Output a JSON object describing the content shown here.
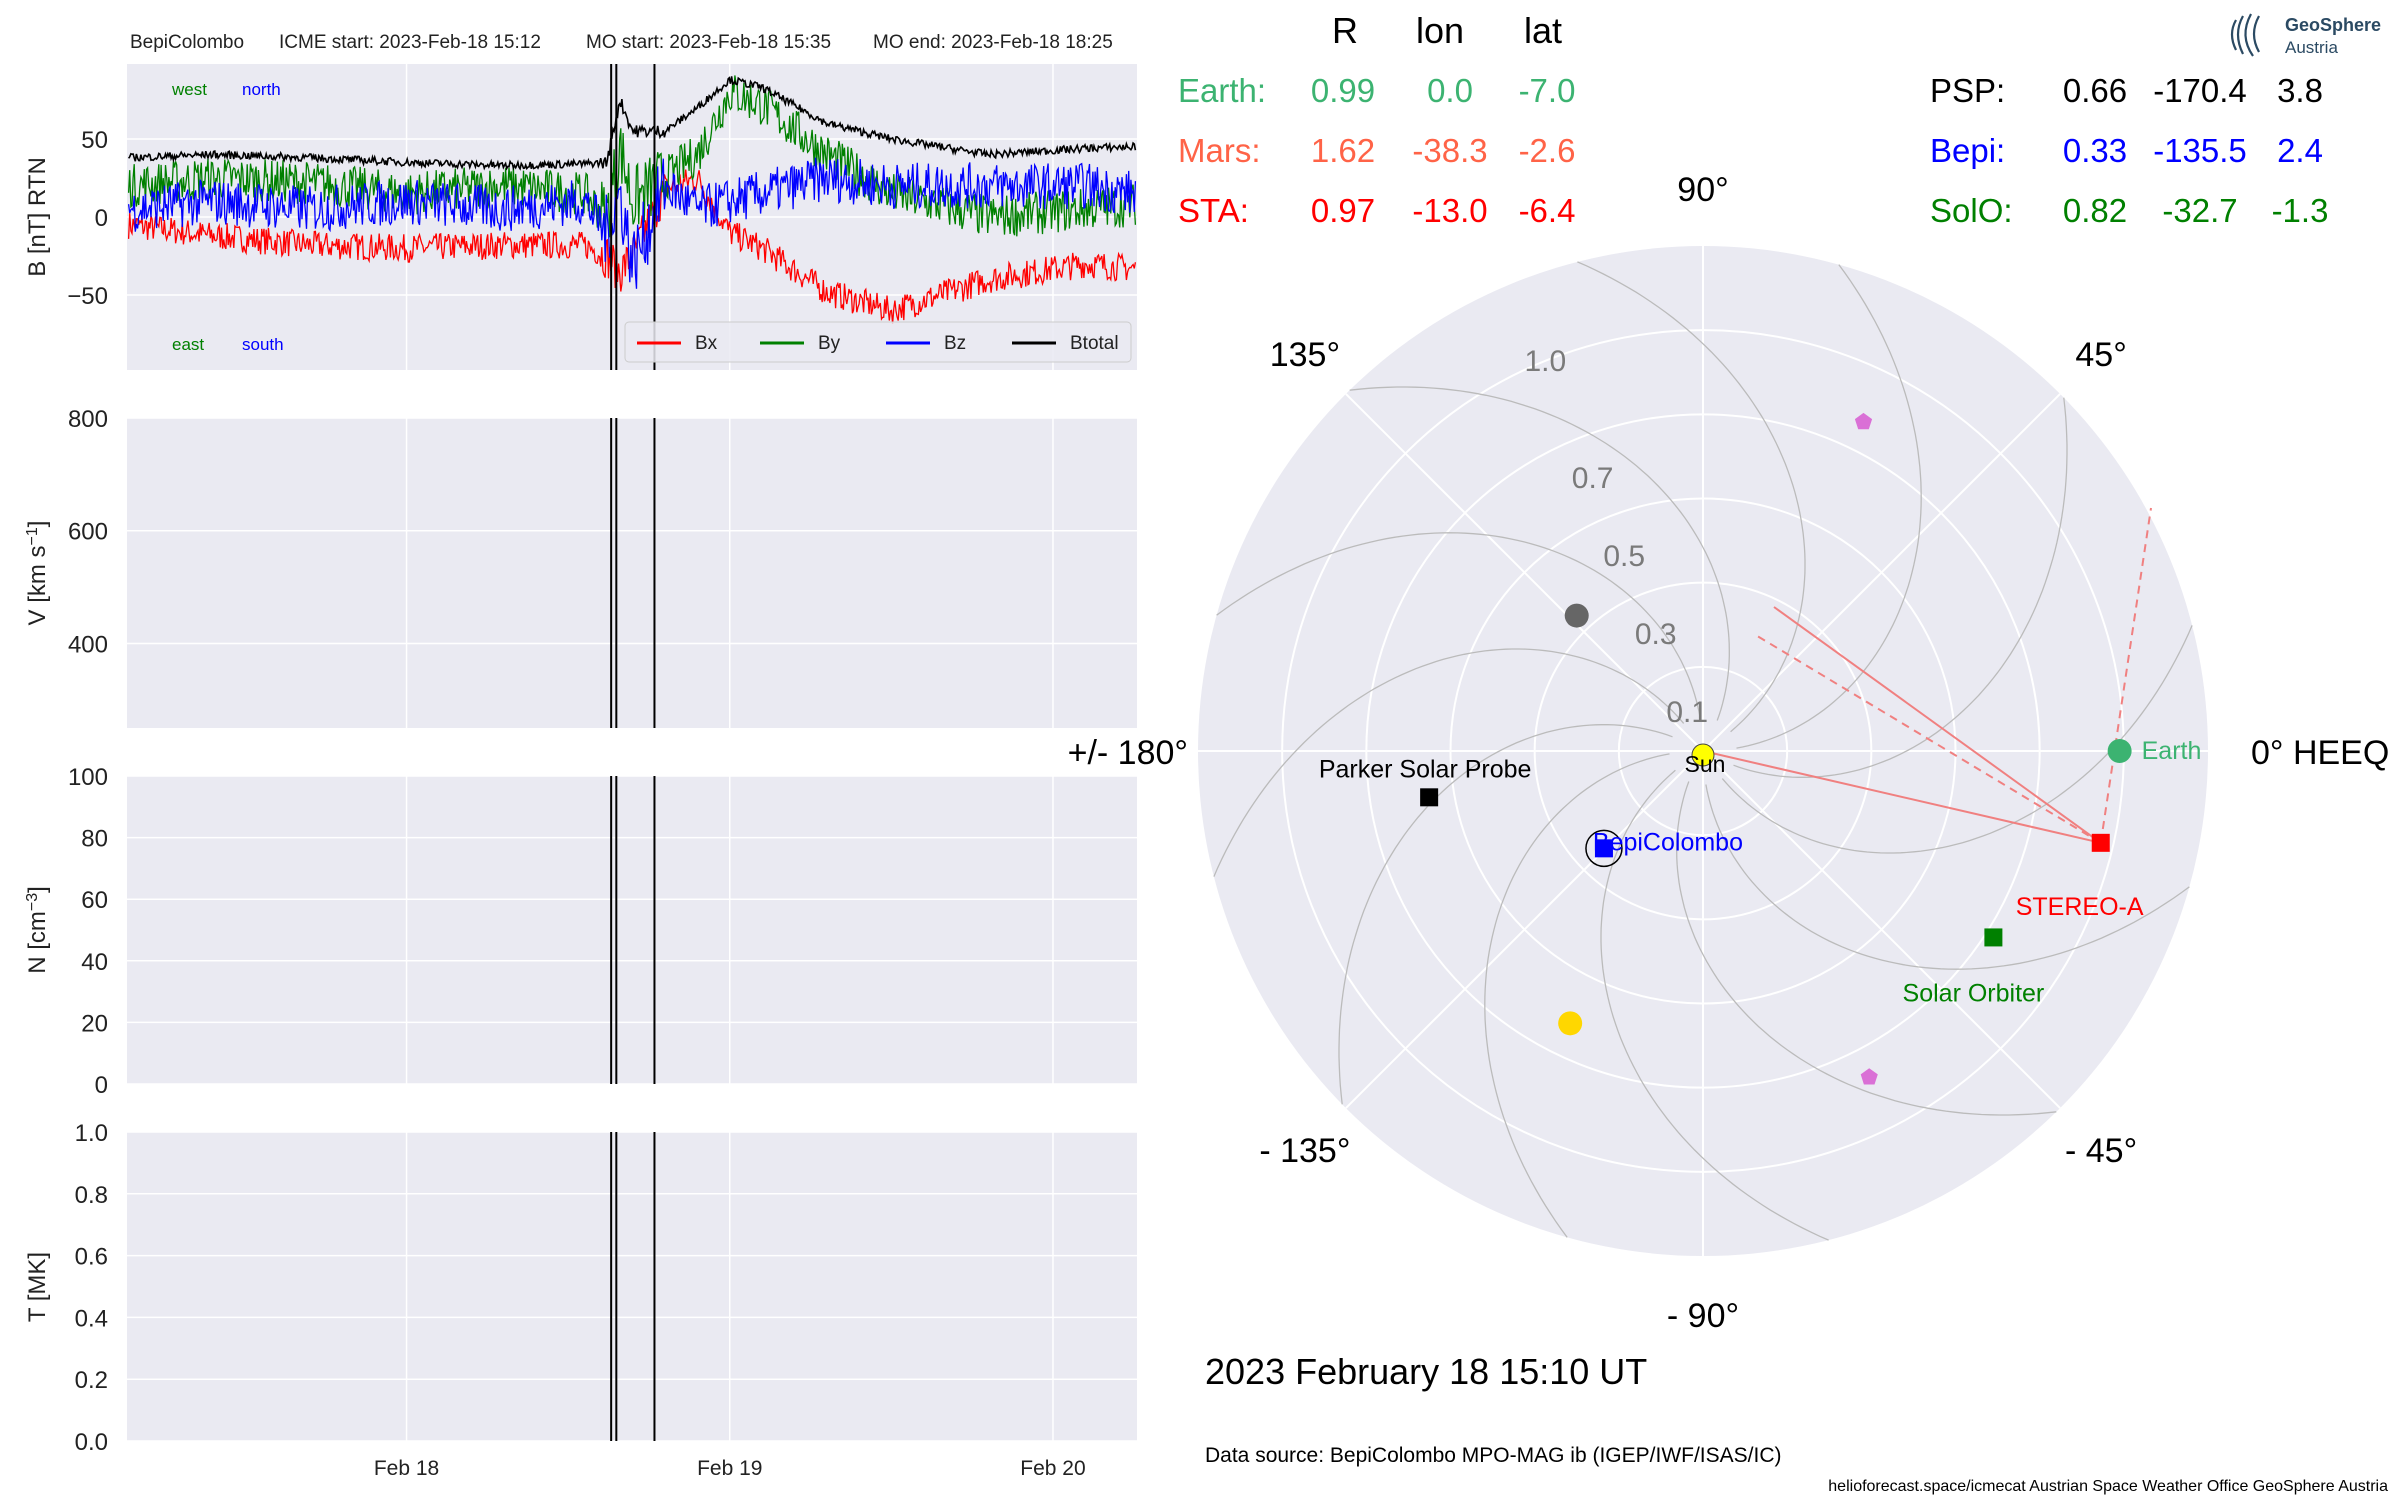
{
  "header": {
    "spacecraft": "BepiColombo",
    "icme_start": "ICME start: 2023-Feb-18 15:12",
    "mo_start": "MO start: 2023-Feb-18 15:35",
    "mo_end": "MO end: 2023-Feb-18 18:25"
  },
  "logo": {
    "name": "GeoSphere",
    "sub": "Austria"
  },
  "panels": {
    "b": {
      "ylabel": "B [nT] RTN",
      "ylim": [
        -98,
        98
      ],
      "ticks": [
        "50",
        "0",
        "−50"
      ],
      "tick_values": [
        50,
        0,
        -50
      ],
      "annot": {
        "west": "west",
        "north": "north",
        "east": "east",
        "south": "south"
      }
    },
    "v": {
      "ylabel": "V [km s",
      "ylabel_sup": "−1",
      "ylabel_end": "]",
      "ylim": [
        250,
        800
      ],
      "ticks": [
        "800",
        "600",
        "400"
      ],
      "tick_values": [
        800,
        600,
        400
      ]
    },
    "n": {
      "ylabel": "N [cm",
      "ylabel_sup": "−3",
      "ylabel_end": "]",
      "ylim": [
        0,
        100
      ],
      "ticks": [
        "100",
        "80",
        "60",
        "40",
        "20",
        "0"
      ],
      "tick_values": [
        100,
        80,
        60,
        40,
        20,
        0
      ]
    },
    "t": {
      "ylabel": "T [MK]",
      "ylim": [
        0,
        1
      ],
      "ticks": [
        "1.0",
        "0.8",
        "0.6",
        "0.4",
        "0.2",
        "0.0"
      ],
      "tick_values": [
        1.0,
        0.8,
        0.6,
        0.4,
        0.2,
        0.0
      ]
    }
  },
  "x_axis": {
    "ticks": [
      "Feb 18",
      "Feb 19",
      "Feb 20"
    ],
    "tick_values": [
      0.0,
      1.0,
      2.0
    ],
    "xlim": [
      -0.865,
      2.26
    ]
  },
  "event_lines": [
    0.633,
    0.649,
    0.767
  ],
  "legend": [
    {
      "label": "Bx",
      "color": "#ff0000"
    },
    {
      "label": "By",
      "color": "#008000"
    },
    {
      "label": "Bz",
      "color": "#0000ff"
    },
    {
      "label": "Btotal",
      "color": "#000000"
    }
  ],
  "table": {
    "headers": [
      "R",
      "lon",
      "lat"
    ],
    "left_rows": [
      {
        "name": "Earth:",
        "r": "0.99",
        "lon": "0.0",
        "lat": "-7.0",
        "color": "#3cb371"
      },
      {
        "name": "Mars:",
        "r": "1.62",
        "lon": "-38.3",
        "lat": "-2.6",
        "color": "#ff6347"
      },
      {
        "name": "STA:",
        "r": "0.97",
        "lon": "-13.0",
        "lat": "-6.4",
        "color": "#ff0000"
      }
    ],
    "right_rows": [
      {
        "name": "PSP:",
        "r": "0.66",
        "lon": "-170.4",
        "lat": "3.8",
        "color": "#000000"
      },
      {
        "name": "Bepi:",
        "r": "0.33",
        "lon": "-135.5",
        "lat": "2.4",
        "color": "#0000ff"
      },
      {
        "name": "SolO:",
        "r": "0.82",
        "lon": "-32.7",
        "lat": "-1.3",
        "color": "#008000"
      }
    ]
  },
  "polar": {
    "angle_labels": [
      {
        "angle": 90,
        "text": "90°"
      },
      {
        "angle": 45,
        "text": "45°"
      },
      {
        "angle": 0,
        "text": "0° HEEQ"
      },
      {
        "angle": -45,
        "text": "- 45°"
      },
      {
        "angle": -90,
        "text": "- 90°"
      },
      {
        "angle": -135,
        "text": "- 135°"
      },
      {
        "angle": 180,
        "text": "+/- 180°"
      },
      {
        "angle": 135,
        "text": "135°"
      }
    ],
    "radial_labels": [
      "0.1",
      "0.3",
      "0.5",
      "0.7",
      "1.0"
    ],
    "radial_values": [
      0.1,
      0.3,
      0.5,
      0.7,
      1.0
    ],
    "rmax": 1.2,
    "sun_label": "Sun",
    "bodies": [
      {
        "label": "Earth",
        "r": 0.99,
        "lon": 0.0,
        "marker": "circle",
        "color": "#3cb371"
      },
      {
        "label": "STEREO-A",
        "r": 0.97,
        "lon": -13.0,
        "marker": "square",
        "color": "#ff0000"
      },
      {
        "label": "Solar Orbiter",
        "r": 0.82,
        "lon": -32.7,
        "marker": "square",
        "color": "#008000"
      },
      {
        "label": "Parker Solar Probe",
        "r": 0.66,
        "lon": -170.4,
        "marker": "square",
        "color": "#000000"
      },
      {
        "label": "BepiColombo",
        "r": 0.33,
        "lon": -135.5,
        "marker": "square",
        "color": "#0000ff"
      }
    ],
    "planets": [
      {
        "r": 0.44,
        "lon": 133.0,
        "color": "#666666"
      },
      {
        "r": 0.72,
        "lon": -116.0,
        "color": "#ffd700"
      },
      {
        "r": 0.87,
        "lon": 64.0,
        "color": "#da70d6"
      },
      {
        "r": 0.87,
        "lon": -63.0,
        "color": "#da70d6"
      }
    ]
  },
  "footer": {
    "date": "2023 February 18  15:10 UT",
    "source": "Data source: BepiColombo MPO-MAG ib (IGEP/IWF/ISAS/IC)",
    "credits": "helioforecast.space/icmecat   Austrian Space Weather Office   GeoSphere Austria"
  },
  "chart_data": [
    {
      "type": "line",
      "title": "",
      "xlabel": "",
      "ylabel": "B [nT] RTN",
      "x_unit": "days relative to 2023-02-18 00:00 UT",
      "ylim": [
        -98,
        98
      ],
      "series": [
        {
          "name": "Bx",
          "x": [
            -0.86,
            -0.6,
            -0.3,
            0.0,
            0.3,
            0.55,
            0.62,
            0.66,
            0.7,
            0.8,
            0.9,
            1.0,
            1.1,
            1.3,
            1.5,
            1.8,
            2.1,
            2.25
          ],
          "values": [
            -5,
            -12,
            -18,
            -20,
            -18,
            -18,
            -25,
            -35,
            -25,
            18,
            25,
            -10,
            -20,
            -48,
            -60,
            -40,
            -30,
            -33
          ]
        },
        {
          "name": "By",
          "x": [
            -0.86,
            -0.6,
            -0.3,
            0.0,
            0.3,
            0.55,
            0.62,
            0.66,
            0.7,
            0.8,
            0.9,
            1.0,
            1.1,
            1.3,
            1.5,
            1.8,
            2.1,
            2.25
          ],
          "values": [
            20,
            25,
            22,
            15,
            20,
            15,
            0,
            45,
            10,
            25,
            40,
            80,
            72,
            40,
            15,
            0,
            5,
            8
          ]
        },
        {
          "name": "Bz",
          "x": [
            -0.86,
            -0.6,
            -0.3,
            0.0,
            0.3,
            0.55,
            0.62,
            0.66,
            0.7,
            0.8,
            0.9,
            1.0,
            1.1,
            1.3,
            1.5,
            1.8,
            2.1,
            2.25
          ],
          "values": [
            5,
            10,
            5,
            10,
            5,
            10,
            -10,
            15,
            -30,
            20,
            5,
            10,
            15,
            25,
            20,
            20,
            20,
            15
          ]
        },
        {
          "name": "Btotal",
          "x": [
            -0.86,
            -0.6,
            -0.3,
            0.0,
            0.3,
            0.55,
            0.62,
            0.66,
            0.7,
            0.8,
            0.9,
            1.0,
            1.1,
            1.3,
            1.5,
            1.8,
            2.1,
            2.25
          ],
          "values": [
            38,
            40,
            38,
            35,
            33,
            34,
            35,
            75,
            55,
            55,
            70,
            88,
            83,
            60,
            50,
            40,
            44,
            45
          ]
        }
      ]
    }
  ]
}
